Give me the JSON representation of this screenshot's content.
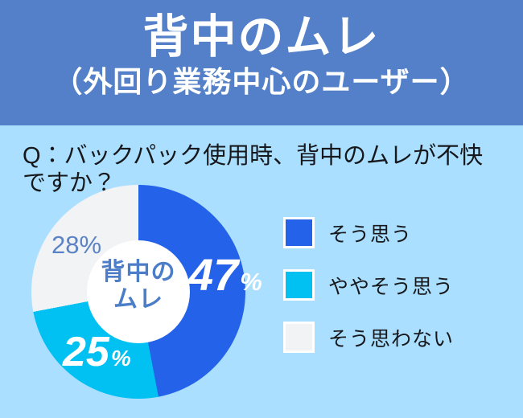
{
  "header": {
    "title": "背中のムレ",
    "subtitle": "（外回り業務中心のユーザー）",
    "bg_color": "#5380c8",
    "text_color": "#ffffff"
  },
  "question": "Q：バックパック使用時、背中のムレが不快ですか？",
  "background_color": "#abdfff",
  "chart_data": {
    "type": "pie",
    "donut": true,
    "title": "背中のムレ（外回り業務中心のユーザー）",
    "start_angle_deg": 0,
    "direction": "clockwise",
    "unit": "%",
    "center_label": {
      "line1": "背中の",
      "line2": "ムレ"
    },
    "legend_position": "right",
    "slices": [
      {
        "label": "そう思う",
        "value": 47,
        "color": "#2463e9",
        "label_color": "#ffffff"
      },
      {
        "label": "ややそう思う",
        "value": 25,
        "color": "#00c1f1",
        "label_color": "#ffffff"
      },
      {
        "label": "そう思わない",
        "value": 28,
        "color": "#f2f3f5",
        "label_color": "#5b82c4"
      }
    ]
  }
}
